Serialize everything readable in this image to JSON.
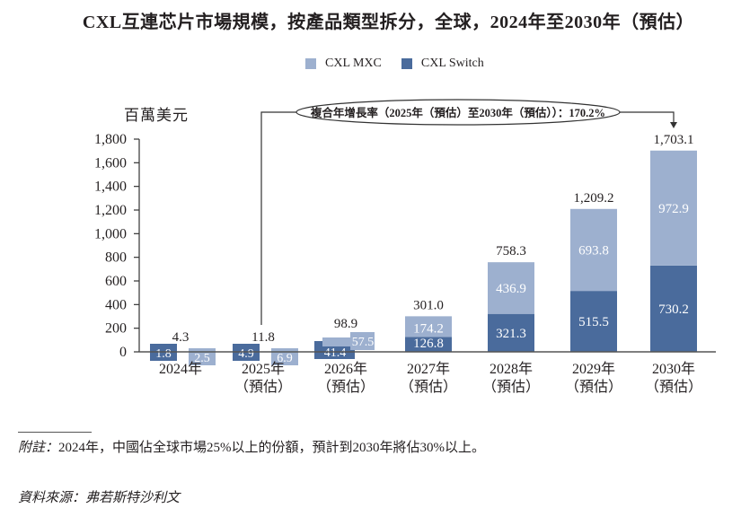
{
  "chart_data": {
    "type": "bar",
    "stacked": true,
    "title": "CXL互連芯片市場規模，按產品類型拆分，全球，2024年至2030年（預估）",
    "ylabel": "百萬美元",
    "xlabel": "",
    "ylim": [
      0,
      1800
    ],
    "yticks": [
      0,
      200,
      400,
      600,
      800,
      1000,
      1200,
      1400,
      1600,
      1800
    ],
    "ytick_labels": [
      "0",
      "200",
      "400",
      "600",
      "800",
      "1,000",
      "1,200",
      "1,400",
      "1,600",
      "1,800"
    ],
    "categories": [
      {
        "year": "2024年",
        "sub": ""
      },
      {
        "year": "2025年",
        "sub": "（預估）"
      },
      {
        "year": "2026年",
        "sub": "（預估）"
      },
      {
        "year": "2027年",
        "sub": "（預估）"
      },
      {
        "year": "2028年",
        "sub": "（預估）"
      },
      {
        "year": "2029年",
        "sub": "（預估）"
      },
      {
        "year": "2030年",
        "sub": "（預估）"
      }
    ],
    "series": [
      {
        "name": "CXL Switch",
        "color": "#4a6b9c",
        "values": [
          1.8,
          4.9,
          41.4,
          126.8,
          321.3,
          515.5,
          730.2
        ],
        "labels": [
          "1.8",
          "4.9",
          "41.4",
          "126.8",
          "321.3",
          "515.5",
          "730.2"
        ]
      },
      {
        "name": "CXL MXC",
        "color": "#9db0cf",
        "values": [
          2.5,
          6.9,
          57.5,
          174.2,
          436.9,
          693.8,
          972.9
        ],
        "labels": [
          "2.5",
          "6.9",
          "57.5",
          "174.2",
          "436.9",
          "693.8",
          "972.9"
        ]
      }
    ],
    "totals": [
      4.3,
      11.8,
      98.9,
      301.0,
      758.3,
      1209.2,
      1703.1
    ],
    "total_labels": [
      "4.3",
      "11.8",
      "98.9",
      "301.0",
      "758.3",
      "1,209.2",
      "1,703.1"
    ],
    "legend": [
      {
        "name": "CXL MXC",
        "color": "#9db0cf"
      },
      {
        "name": "CXL Switch",
        "color": "#4a6b9c"
      }
    ],
    "legend_position": "top-center",
    "grid": false,
    "annotation": {
      "text": "複合年增長率（2025年（預估）至2030年（預估））：170.2%",
      "from_category": "2025年",
      "to_category": "2030年",
      "cagr": "170.2%"
    }
  },
  "footer": {
    "note_label": "附註：",
    "note_text": "2024年，中國佔全球市場25%以上的份額，預計到2030年將佔30%以上。",
    "source_label": "資料來源：",
    "source_text": "弗若斯特沙利文"
  }
}
